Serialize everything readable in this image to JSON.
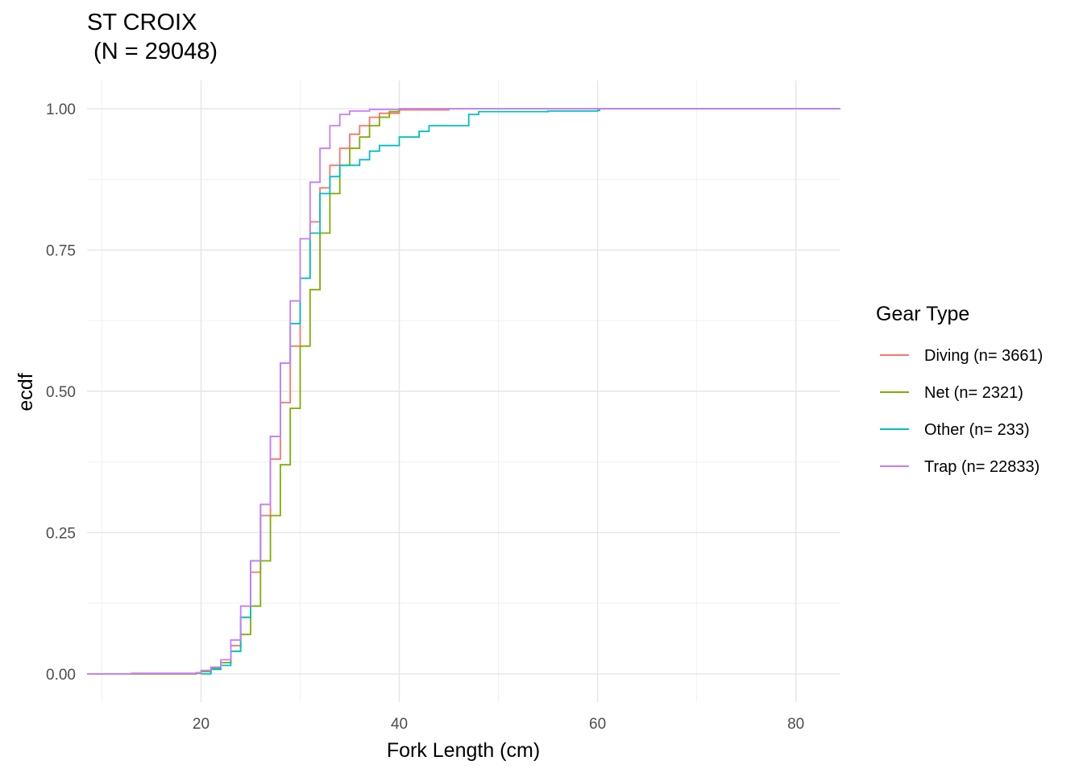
{
  "chart_data": {
    "type": "line",
    "subtype": "ecdf-step",
    "title": "ST CROIX\n (N = 29048)",
    "xlabel": "Fork Length (cm)",
    "ylabel": "ecdf",
    "xlim": [
      8.5,
      84.5
    ],
    "ylim": [
      -0.05,
      1.05
    ],
    "x_ticks": [
      20,
      40,
      60,
      80
    ],
    "x_tick_labels": [
      "20",
      "40",
      "60",
      "80"
    ],
    "y_ticks": [
      0,
      0.25,
      0.5,
      0.75,
      1.0
    ],
    "y_tick_labels": [
      "0.00",
      "0.25",
      "0.50",
      "0.75",
      "1.00"
    ],
    "grid": true,
    "legend": {
      "title": "Gear Type",
      "position": "right"
    },
    "series": [
      {
        "name": "Diving (n= 3661)",
        "color": "#F8766D",
        "points": [
          [
            8.5,
            0
          ],
          [
            13,
            0
          ],
          [
            19.5,
            0.002
          ],
          [
            20,
            0.005
          ],
          [
            21,
            0.01
          ],
          [
            22,
            0.02
          ],
          [
            23,
            0.05
          ],
          [
            24,
            0.1
          ],
          [
            25,
            0.18
          ],
          [
            26,
            0.28
          ],
          [
            27,
            0.38
          ],
          [
            28,
            0.48
          ],
          [
            29,
            0.58
          ],
          [
            30,
            0.7
          ],
          [
            31,
            0.8
          ],
          [
            32,
            0.86
          ],
          [
            33,
            0.9
          ],
          [
            34,
            0.93
          ],
          [
            35,
            0.955
          ],
          [
            36,
            0.97
          ],
          [
            37,
            0.985
          ],
          [
            38,
            0.992
          ],
          [
            40,
            0.998
          ],
          [
            45,
            1.0
          ],
          [
            84.5,
            1.0
          ]
        ]
      },
      {
        "name": "Net (n= 2321)",
        "color": "#7CAE00",
        "points": [
          [
            8.5,
            0
          ],
          [
            13,
            0
          ],
          [
            19.5,
            0.001
          ],
          [
            20,
            0.004
          ],
          [
            21,
            0.01
          ],
          [
            22,
            0.02
          ],
          [
            23,
            0.04
          ],
          [
            24,
            0.07
          ],
          [
            25,
            0.12
          ],
          [
            26,
            0.2
          ],
          [
            27,
            0.28
          ],
          [
            28,
            0.37
          ],
          [
            29,
            0.47
          ],
          [
            30,
            0.58
          ],
          [
            31,
            0.68
          ],
          [
            32,
            0.78
          ],
          [
            33,
            0.85
          ],
          [
            34,
            0.9
          ],
          [
            35,
            0.93
          ],
          [
            36,
            0.95
          ],
          [
            37,
            0.97
          ],
          [
            38,
            0.985
          ],
          [
            39,
            0.995
          ],
          [
            40,
            1.0
          ],
          [
            84.5,
            1.0
          ]
        ]
      },
      {
        "name": "Other (n= 233)",
        "color": "#00BFC4",
        "points": [
          [
            20,
            0
          ],
          [
            21,
            0.008
          ],
          [
            22,
            0.015
          ],
          [
            23,
            0.04
          ],
          [
            24,
            0.1
          ],
          [
            25,
            0.2
          ],
          [
            26,
            0.3
          ],
          [
            27,
            0.42
          ],
          [
            28,
            0.55
          ],
          [
            29,
            0.62
          ],
          [
            30,
            0.7
          ],
          [
            31,
            0.78
          ],
          [
            32,
            0.85
          ],
          [
            33,
            0.88
          ],
          [
            34,
            0.9
          ],
          [
            36,
            0.91
          ],
          [
            37,
            0.925
          ],
          [
            38,
            0.935
          ],
          [
            40,
            0.95
          ],
          [
            42,
            0.96
          ],
          [
            43,
            0.97
          ],
          [
            47,
            0.99
          ],
          [
            48,
            0.995
          ],
          [
            55,
            0.996
          ],
          [
            60,
            0.997
          ],
          [
            60.2,
            1.0
          ],
          [
            84.5,
            1.0
          ]
        ]
      },
      {
        "name": "Trap (n= 22833)",
        "color": "#C77CFF",
        "points": [
          [
            8.5,
            0
          ],
          [
            13,
            0.001
          ],
          [
            19.5,
            0.002
          ],
          [
            20,
            0.006
          ],
          [
            21,
            0.012
          ],
          [
            22,
            0.025
          ],
          [
            23,
            0.06
          ],
          [
            24,
            0.12
          ],
          [
            25,
            0.2
          ],
          [
            26,
            0.3
          ],
          [
            27,
            0.42
          ],
          [
            28,
            0.55
          ],
          [
            29,
            0.66
          ],
          [
            30,
            0.77
          ],
          [
            31,
            0.87
          ],
          [
            32,
            0.93
          ],
          [
            33,
            0.97
          ],
          [
            34,
            0.99
          ],
          [
            35,
            0.996
          ],
          [
            37,
            0.999
          ],
          [
            40,
            1.0
          ],
          [
            84.5,
            1.0
          ]
        ]
      }
    ]
  }
}
